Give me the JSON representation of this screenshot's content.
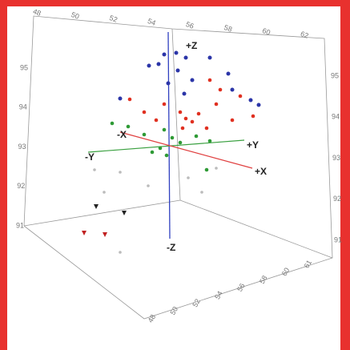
{
  "axis_labels": {
    "z_pos": "+Z",
    "z_neg": "-Z",
    "x_pos": "+X",
    "x_neg": "-X",
    "y_pos": "+Y",
    "y_neg": "-Y"
  },
  "ticks": {
    "top": [
      "48",
      "50",
      "52",
      "54",
      "56",
      "58",
      "60",
      "62"
    ],
    "left": [
      "95",
      "94",
      "93",
      "92",
      "91"
    ],
    "right": [
      "95",
      "94",
      "93",
      "92",
      "91"
    ],
    "bottom_right": [
      "48",
      "50",
      "52",
      "54",
      "56",
      "58",
      "60",
      "61"
    ]
  }
}
